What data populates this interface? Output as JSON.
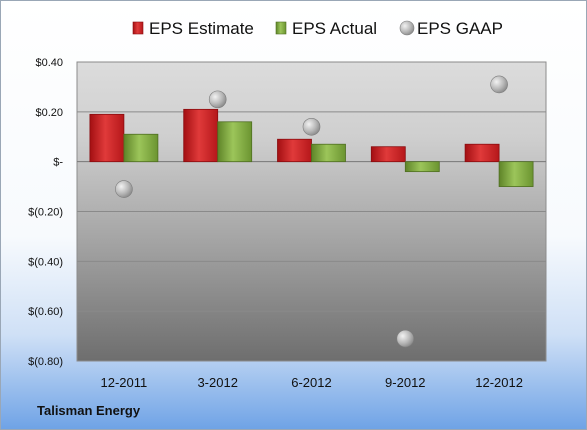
{
  "company": "Talisman Energy",
  "chart_data": {
    "type": "bar",
    "categories": [
      "12-2011",
      "3-2012",
      "6-2012",
      "9-2012",
      "12-2012"
    ],
    "series": [
      {
        "name": "EPS Estimate",
        "type": "bar",
        "color": "#cc1f1f",
        "values": [
          0.19,
          0.21,
          0.09,
          0.06,
          0.07
        ]
      },
      {
        "name": "EPS Actual",
        "type": "bar",
        "color": "#7aa23a",
        "values": [
          0.11,
          0.16,
          0.07,
          -0.04,
          -0.1
        ]
      },
      {
        "name": "EPS GAAP",
        "type": "scatter",
        "color": "#b0b0b0",
        "values": [
          -0.11,
          0.25,
          0.14,
          -0.71,
          0.31
        ]
      }
    ],
    "ylim": [
      -0.8,
      0.4
    ],
    "yticks": [
      0.4,
      0.2,
      0,
      -0.2,
      -0.4,
      -0.6,
      -0.8
    ],
    "ytick_labels": [
      "$0.40",
      "$0.20",
      "$-",
      "$(0.20)",
      "$(0.40)",
      "$(0.60)",
      "$(0.80)"
    ],
    "grid": true,
    "legend": "top"
  }
}
